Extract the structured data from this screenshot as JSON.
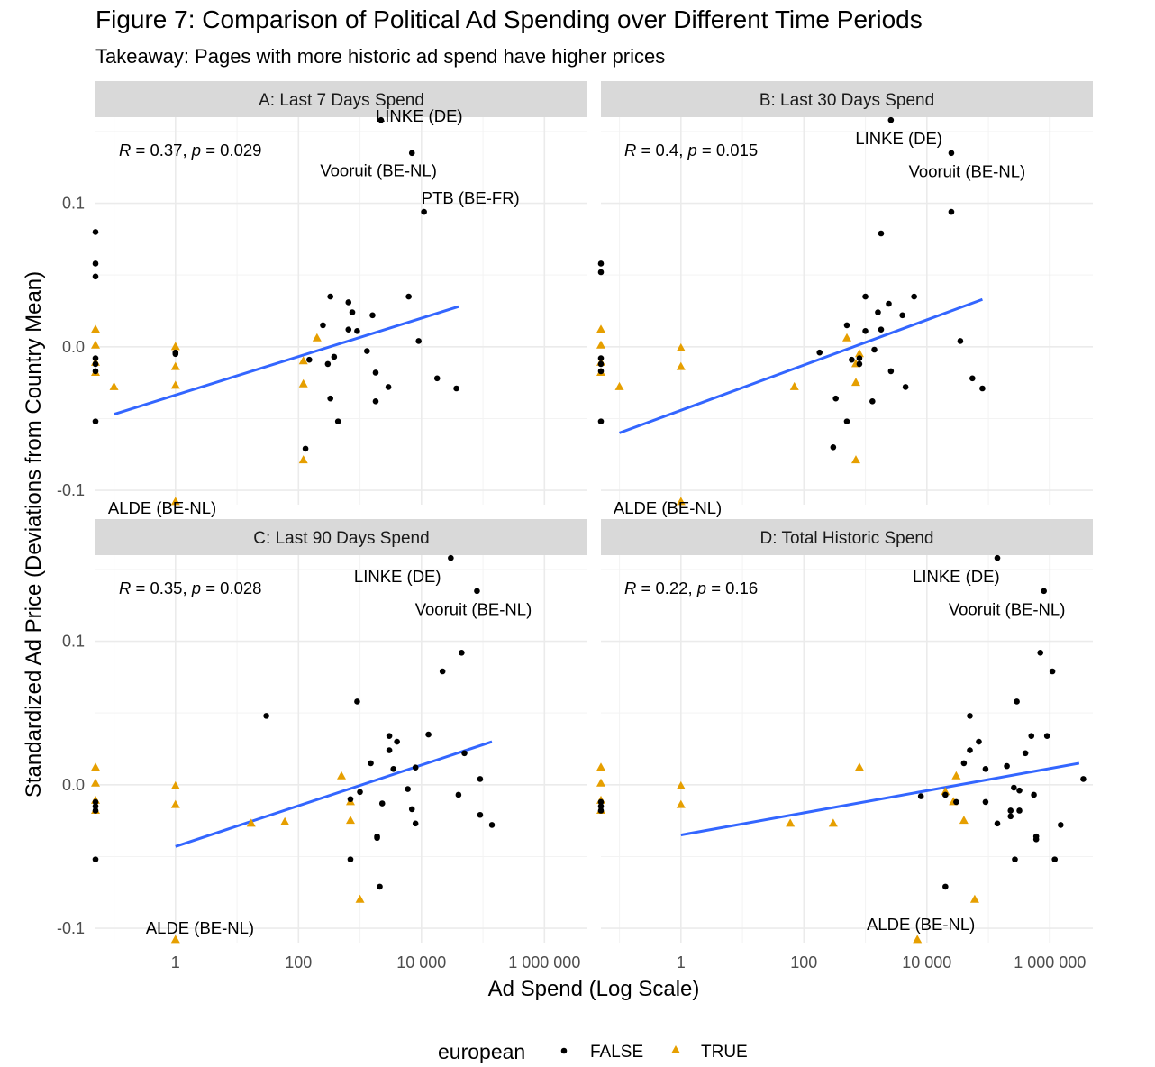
{
  "title": "Figure 7: Comparison of Political Ad Spending over Different Time Periods",
  "subtitle": "Takeaway: Pages with more historic ad spend have higher prices",
  "colors": {
    "false": "#000000",
    "true": "#E69F00",
    "fit": "#3366FF"
  },
  "chart_data": {
    "type": "scatter",
    "xlabel": "Ad Spend (Log Scale)",
    "ylabel": "Standardized Ad Price (Deviations from Country Mean)",
    "x_scale": "log10",
    "x_range": [
      0.05,
      5000000
    ],
    "y_range": [
      -0.11,
      0.16
    ],
    "x_ticks": [
      {
        "v": 1,
        "label": "1"
      },
      {
        "v": 100,
        "label": "100"
      },
      {
        "v": 10000,
        "label": "10 000"
      },
      {
        "v": 1000000,
        "label": "1 000 000"
      }
    ],
    "y_ticks": [
      {
        "v": -0.1,
        "label": "-0.1"
      },
      {
        "v": 0,
        "label": "0.0"
      },
      {
        "v": 0.1,
        "label": "0.1"
      }
    ],
    "legend": {
      "title": "european",
      "position": "bottom",
      "entries": [
        {
          "label": "FALSE",
          "shape": "circle"
        },
        {
          "label": "TRUE",
          "shape": "triangle"
        }
      ]
    },
    "panels": [
      {
        "strip": "A: Last 7 Days Spend",
        "r_label": "R",
        "r_value": "0.37",
        "p_label": "p",
        "p_value": "0.029",
        "fit": [
          {
            "x": 0.1,
            "y": -0.047
          },
          {
            "x": 40000,
            "y": 0.028
          }
        ],
        "labels": [
          {
            "text": "LINKE (DE)",
            "x": 1800,
            "y": 0.1605,
            "anchor": "start"
          },
          {
            "text": "Vooruit (BE-NL)",
            "x": 2000,
            "y": 0.1225,
            "anchor": "middle"
          },
          {
            "text": "PTB (BE-FR)",
            "x": 10000,
            "y": 0.1035,
            "anchor": "start"
          },
          {
            "text": "ALDE (BE-NL)",
            "x": 0.08,
            "y": -0.1125,
            "anchor": "start"
          }
        ],
        "false": [
          [
            0.05,
            0.08
          ],
          [
            0.05,
            0.058
          ],
          [
            0.05,
            0.049
          ],
          [
            0.05,
            -0.008
          ],
          [
            0.05,
            -0.012
          ],
          [
            0.05,
            -0.017
          ],
          [
            0.05,
            -0.052
          ],
          [
            1,
            -0.004
          ],
          [
            1,
            -0.005
          ],
          [
            130,
            -0.071
          ],
          [
            150,
            -0.009
          ],
          [
            250,
            0.015
          ],
          [
            300,
            -0.012
          ],
          [
            330,
            0.035
          ],
          [
            380,
            -0.007
          ],
          [
            330,
            -0.036
          ],
          [
            440,
            -0.052
          ],
          [
            650,
            0.031
          ],
          [
            650,
            0.012
          ],
          [
            750,
            0.024
          ],
          [
            900,
            0.011
          ],
          [
            1300,
            -0.003
          ],
          [
            1600,
            0.022
          ],
          [
            1800,
            -0.018
          ],
          [
            1800,
            -0.038
          ],
          [
            2900,
            -0.028
          ],
          [
            6200,
            0.035
          ],
          [
            7000,
            0.135
          ],
          [
            9000,
            0.004
          ],
          [
            11000,
            0.094
          ],
          [
            18000,
            -0.022
          ],
          [
            37000,
            -0.029
          ],
          [
            2200,
            0.158
          ]
        ],
        "true": [
          [
            0.05,
            0.012
          ],
          [
            0.05,
            0.001
          ],
          [
            0.05,
            -0.011
          ],
          [
            0.05,
            -0.018
          ],
          [
            0.1,
            -0.028
          ],
          [
            1,
            0
          ],
          [
            1,
            -0.014
          ],
          [
            1,
            -0.027
          ],
          [
            1,
            -0.108
          ],
          [
            120,
            -0.01
          ],
          [
            120,
            -0.026
          ],
          [
            120,
            -0.079
          ],
          [
            200,
            0.006
          ]
        ]
      },
      {
        "strip": "B: Last 30 Days Spend",
        "r_label": "R",
        "r_value": "0.4",
        "p_label": "p",
        "p_value": "0.015",
        "fit": [
          {
            "x": 0.1,
            "y": -0.06
          },
          {
            "x": 80000,
            "y": 0.033
          }
        ],
        "labels": [
          {
            "text": "LINKE (DE)",
            "x": 3500,
            "y": 0.145,
            "anchor": "middle"
          },
          {
            "text": "Vooruit (BE-NL)",
            "x": 45000,
            "y": 0.122,
            "anchor": "middle"
          },
          {
            "text": "ALDE (BE-NL)",
            "x": 0.08,
            "y": -0.1125,
            "anchor": "start"
          }
        ],
        "false": [
          [
            0.05,
            0.058
          ],
          [
            0.05,
            0.052
          ],
          [
            0.05,
            -0.008
          ],
          [
            0.05,
            -0.012
          ],
          [
            0.05,
            -0.017
          ],
          [
            0.05,
            -0.052
          ],
          [
            180,
            -0.004
          ],
          [
            300,
            -0.07
          ],
          [
            330,
            -0.036
          ],
          [
            500,
            -0.052
          ],
          [
            500,
            0.015
          ],
          [
            600,
            -0.009
          ],
          [
            800,
            -0.008
          ],
          [
            800,
            -0.012
          ],
          [
            1000,
            0.011
          ],
          [
            1000,
            0.035
          ],
          [
            1300,
            -0.038
          ],
          [
            1400,
            -0.002
          ],
          [
            1600,
            0.024
          ],
          [
            1800,
            0.079
          ],
          [
            1800,
            0.012
          ],
          [
            2400,
            0.03
          ],
          [
            2600,
            -0.017
          ],
          [
            2600,
            0.158
          ],
          [
            4000,
            0.022
          ],
          [
            4500,
            -0.028
          ],
          [
            6200,
            0.035
          ],
          [
            25000,
            0.135
          ],
          [
            25000,
            0.094
          ],
          [
            35000,
            0.004
          ],
          [
            55000,
            -0.022
          ],
          [
            80000,
            -0.029
          ]
        ],
        "true": [
          [
            0.05,
            0.012
          ],
          [
            0.05,
            0.001
          ],
          [
            0.05,
            -0.011
          ],
          [
            0.05,
            -0.018
          ],
          [
            0.1,
            -0.028
          ],
          [
            1,
            -0.001
          ],
          [
            1,
            -0.014
          ],
          [
            1,
            -0.108
          ],
          [
            70,
            -0.028
          ],
          [
            500,
            0.006
          ],
          [
            700,
            -0.012
          ],
          [
            800,
            -0.005
          ],
          [
            700,
            -0.025
          ],
          [
            700,
            -0.079
          ]
        ]
      },
      {
        "strip": "C: Last 90 Days Spend",
        "r_label": "R",
        "r_value": "0.35",
        "p_label": "p",
        "p_value": "0.028",
        "fit": [
          {
            "x": 1,
            "y": -0.043
          },
          {
            "x": 140000,
            "y": 0.03
          }
        ],
        "labels": [
          {
            "text": "LINKE (DE)",
            "x": 800,
            "y": 0.145,
            "anchor": "start"
          },
          {
            "text": "Vooruit (BE-NL)",
            "x": 70000,
            "y": 0.122,
            "anchor": "middle"
          },
          {
            "text": "ALDE (BE-NL)",
            "x": 2.5,
            "y": -0.1,
            "anchor": "middle"
          }
        ],
        "false": [
          [
            0.05,
            -0.012
          ],
          [
            0.05,
            -0.015
          ],
          [
            0.05,
            -0.018
          ],
          [
            0.05,
            -0.052
          ],
          [
            30,
            0.048
          ],
          [
            700,
            -0.052
          ],
          [
            700,
            -0.01
          ],
          [
            900,
            0.058
          ],
          [
            1000,
            -0.005
          ],
          [
            1500,
            0.015
          ],
          [
            1900,
            -0.036
          ],
          [
            1900,
            -0.037
          ],
          [
            2100,
            -0.071
          ],
          [
            2300,
            -0.013
          ],
          [
            3000,
            0.034
          ],
          [
            3000,
            0.024
          ],
          [
            3500,
            0.011
          ],
          [
            4000,
            0.03
          ],
          [
            6000,
            -0.003
          ],
          [
            7000,
            -0.017
          ],
          [
            8000,
            0.012
          ],
          [
            8000,
            -0.027
          ],
          [
            13000,
            0.035
          ],
          [
            22000,
            0.079
          ],
          [
            30000,
            0.158
          ],
          [
            40000,
            -0.007
          ],
          [
            45000,
            0.092
          ],
          [
            50000,
            0.022
          ],
          [
            80000,
            0.135
          ],
          [
            90000,
            -0.021
          ],
          [
            90000,
            0.004
          ],
          [
            140000,
            -0.028
          ]
        ],
        "true": [
          [
            0.05,
            0.012
          ],
          [
            0.05,
            0.001
          ],
          [
            0.05,
            -0.011
          ],
          [
            0.05,
            -0.018
          ],
          [
            1,
            -0.001
          ],
          [
            1,
            -0.014
          ],
          [
            1,
            -0.108
          ],
          [
            17,
            -0.027
          ],
          [
            60,
            -0.026
          ],
          [
            500,
            0.006
          ],
          [
            700,
            -0.025
          ],
          [
            700,
            -0.012
          ],
          [
            1000,
            -0.08
          ]
        ]
      },
      {
        "strip": "D: Total Historic Spend",
        "r_label": "R",
        "r_value": "0.22",
        "p_label": "p",
        "p_value": "0.16",
        "fit": [
          {
            "x": 1,
            "y": -0.035
          },
          {
            "x": 3000000,
            "y": 0.015
          }
        ],
        "labels": [
          {
            "text": "LINKE (DE)",
            "x": 30000,
            "y": 0.145,
            "anchor": "middle"
          },
          {
            "text": "Vooruit (BE-NL)",
            "x": 200000,
            "y": 0.122,
            "anchor": "middle"
          },
          {
            "text": "ALDE (BE-NL)",
            "x": 8000,
            "y": -0.0975,
            "anchor": "middle"
          }
        ],
        "false": [
          [
            0.05,
            -0.012
          ],
          [
            0.05,
            -0.015
          ],
          [
            0.05,
            -0.018
          ],
          [
            8000,
            -0.008
          ],
          [
            20000,
            -0.071
          ],
          [
            20000,
            -0.007
          ],
          [
            30000,
            -0.012
          ],
          [
            40000,
            0.015
          ],
          [
            50000,
            0.024
          ],
          [
            50000,
            0.048
          ],
          [
            70000,
            0.03
          ],
          [
            90000,
            -0.012
          ],
          [
            90000,
            0.011
          ],
          [
            140000,
            0.158
          ],
          [
            140000,
            -0.027
          ],
          [
            200000,
            0.013
          ],
          [
            230000,
            -0.022
          ],
          [
            230000,
            -0.018
          ],
          [
            260000,
            -0.002
          ],
          [
            270000,
            -0.052
          ],
          [
            290000,
            0.058
          ],
          [
            320000,
            -0.004
          ],
          [
            320000,
            -0.018
          ],
          [
            400000,
            0.022
          ],
          [
            500000,
            0.034
          ],
          [
            550000,
            -0.007
          ],
          [
            600000,
            -0.036
          ],
          [
            600000,
            -0.038
          ],
          [
            700000,
            0.092
          ],
          [
            800000,
            0.135
          ],
          [
            900000,
            0.034
          ],
          [
            1100000,
            0.079
          ],
          [
            1200000,
            -0.052
          ],
          [
            1500000,
            -0.028
          ],
          [
            3500000,
            0.004
          ]
        ],
        "true": [
          [
            0.05,
            0.012
          ],
          [
            0.05,
            0.001
          ],
          [
            0.05,
            -0.011
          ],
          [
            0.05,
            -0.018
          ],
          [
            1,
            -0.001
          ],
          [
            1,
            -0.014
          ],
          [
            60,
            -0.027
          ],
          [
            300,
            -0.027
          ],
          [
            800,
            0.012
          ],
          [
            7000,
            -0.108
          ],
          [
            20000,
            -0.005
          ],
          [
            27000,
            -0.012
          ],
          [
            30000,
            0.006
          ],
          [
            40000,
            -0.025
          ],
          [
            60000,
            -0.08
          ]
        ]
      }
    ]
  }
}
